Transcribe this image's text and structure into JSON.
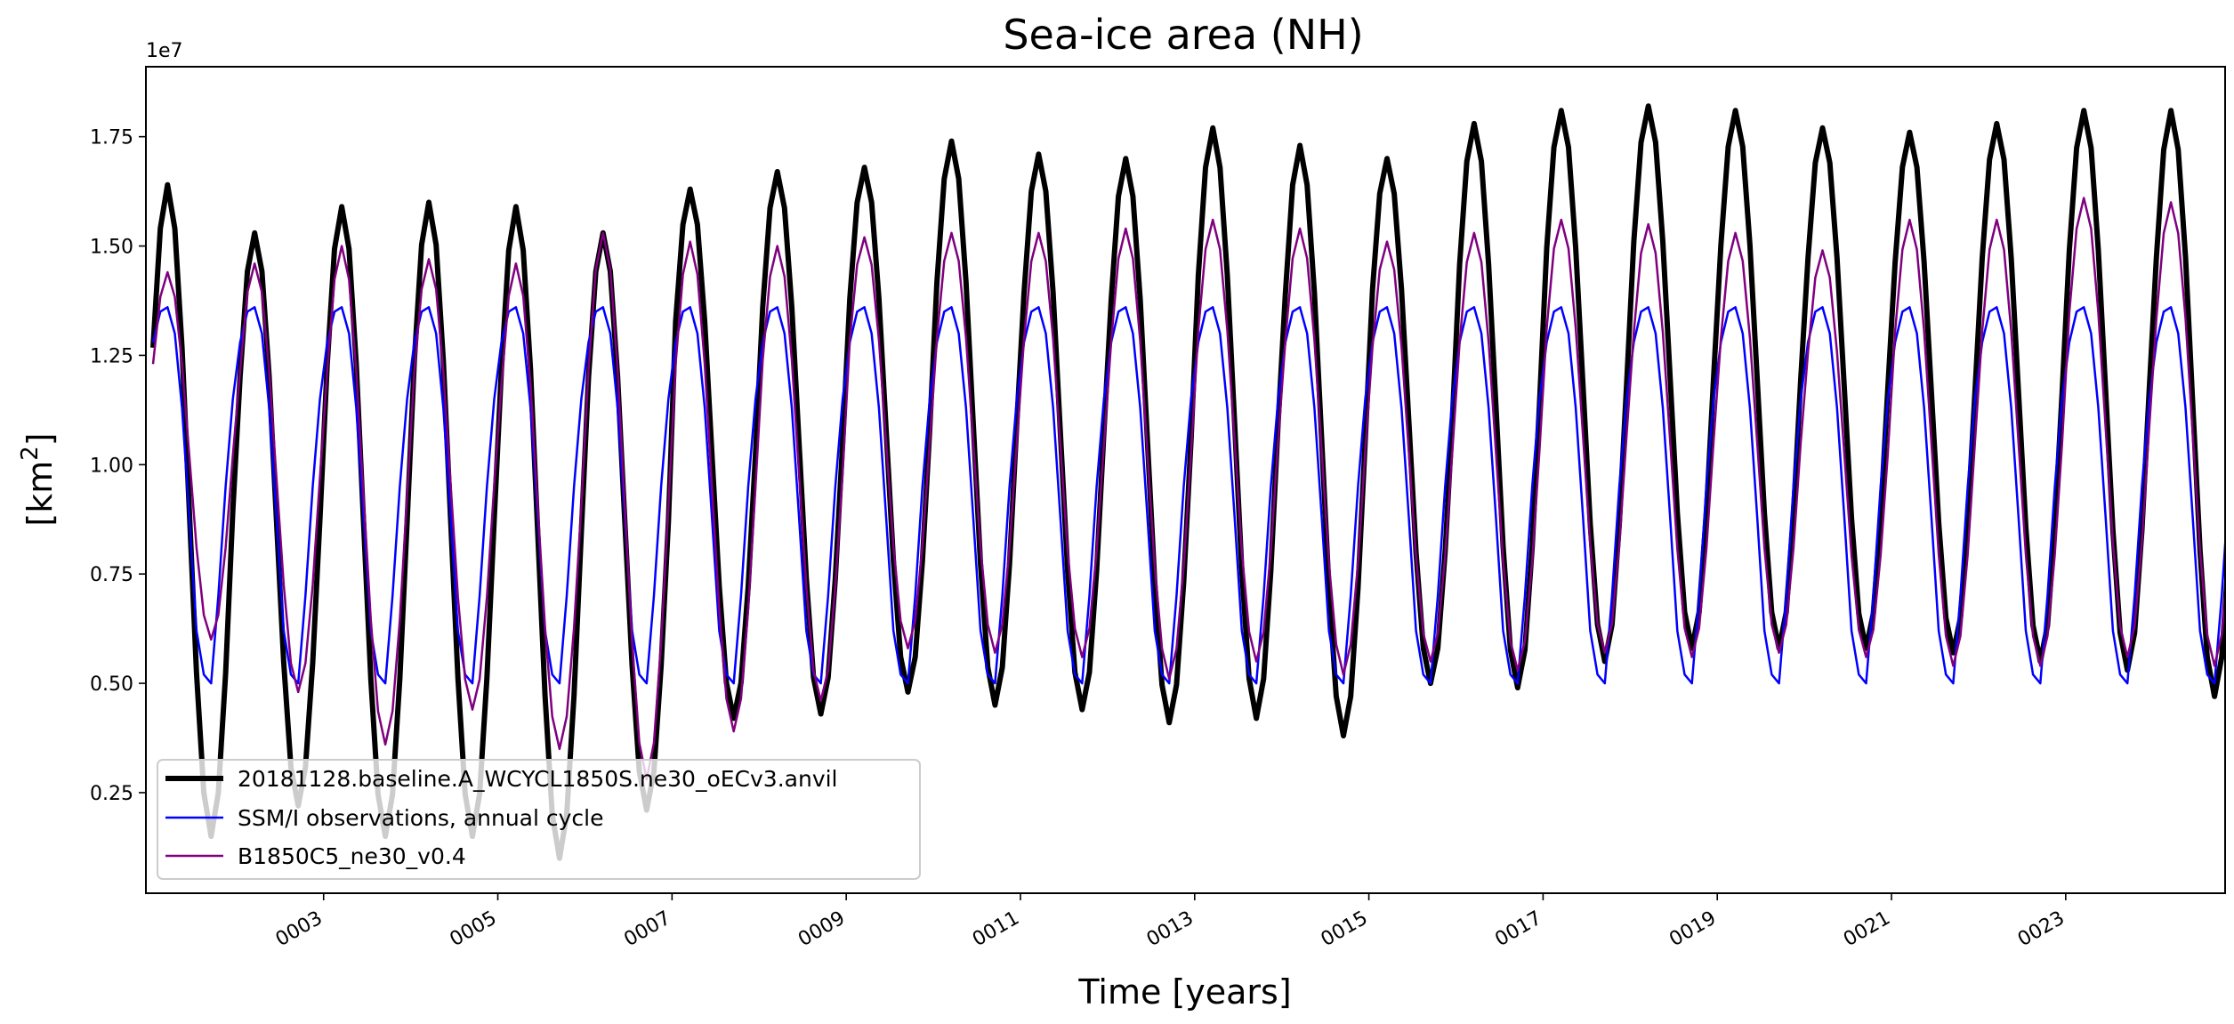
{
  "chart_data": {
    "type": "line",
    "title": "Sea-ice area (NH)",
    "xlabel": "Time [years]",
    "ylabel": "[km",
    "ylabel_sup": "2",
    "ylabel_close": "]",
    "y_offset_label": "1e7",
    "xlim": [
      0.96,
      24.83
    ],
    "ylim": [
      0.02,
      1.91
    ],
    "x_ticks": [
      3,
      5,
      7,
      9,
      11,
      13,
      15,
      17,
      19,
      21,
      23
    ],
    "x_tick_labels": [
      "0003",
      "0005",
      "0007",
      "0009",
      "0011",
      "0013",
      "0015",
      "0017",
      "0019",
      "0021",
      "0023"
    ],
    "y_ticks": [
      0.25,
      0.5,
      0.75,
      1.0,
      1.25,
      1.5,
      1.75
    ],
    "y_tick_labels": [
      "0.25",
      "0.50",
      "0.75",
      "1.00",
      "1.25",
      "1.50",
      "1.75"
    ],
    "grid": false,
    "legend_position": "lower-left",
    "months_per_year": 12,
    "series": [
      {
        "name": "20181128.baseline.A_WCYCL1850S.ne30_oECv3.anvil",
        "color": "#000000",
        "yearly_max": [
          1.64,
          1.53,
          1.59,
          1.6,
          1.59,
          1.53,
          1.63,
          1.67,
          1.68,
          1.74,
          1.71,
          1.7,
          1.77,
          1.73,
          1.7,
          1.78,
          1.81,
          1.82,
          1.81,
          1.77,
          1.76,
          1.78,
          1.81,
          1.81
        ],
        "yearly_min": [
          0.15,
          0.22,
          0.15,
          0.15,
          0.1,
          0.21,
          0.42,
          0.43,
          0.48,
          0.45,
          0.44,
          0.41,
          0.42,
          0.38,
          0.5,
          0.49,
          0.55,
          0.58,
          0.58,
          0.58,
          0.57,
          0.55,
          0.53,
          0.47
        ]
      },
      {
        "name": "SSM/I observations, annual cycle",
        "color": "#0000ff",
        "monthly_cycle": [
          1.28,
          1.35,
          1.36,
          1.3,
          1.13,
          0.88,
          0.62,
          0.52,
          0.5,
          0.7,
          0.95,
          1.15
        ]
      },
      {
        "name": "B1850C5_ne30_v0.4",
        "color": "#800080",
        "yearly_max": [
          1.44,
          1.46,
          1.5,
          1.47,
          1.46,
          1.53,
          1.51,
          1.5,
          1.52,
          1.53,
          1.53,
          1.54,
          1.56,
          1.54,
          1.51,
          1.53,
          1.56,
          1.55,
          1.53,
          1.49,
          1.56,
          1.56,
          1.61,
          1.6
        ],
        "yearly_min": [
          0.6,
          0.48,
          0.36,
          0.44,
          0.35,
          0.28,
          0.39,
          0.46,
          0.58,
          0.57,
          0.56,
          0.51,
          0.55,
          0.52,
          0.55,
          0.53,
          0.57,
          0.56,
          0.57,
          0.56,
          0.54,
          0.54,
          0.56,
          0.54
        ]
      }
    ]
  }
}
